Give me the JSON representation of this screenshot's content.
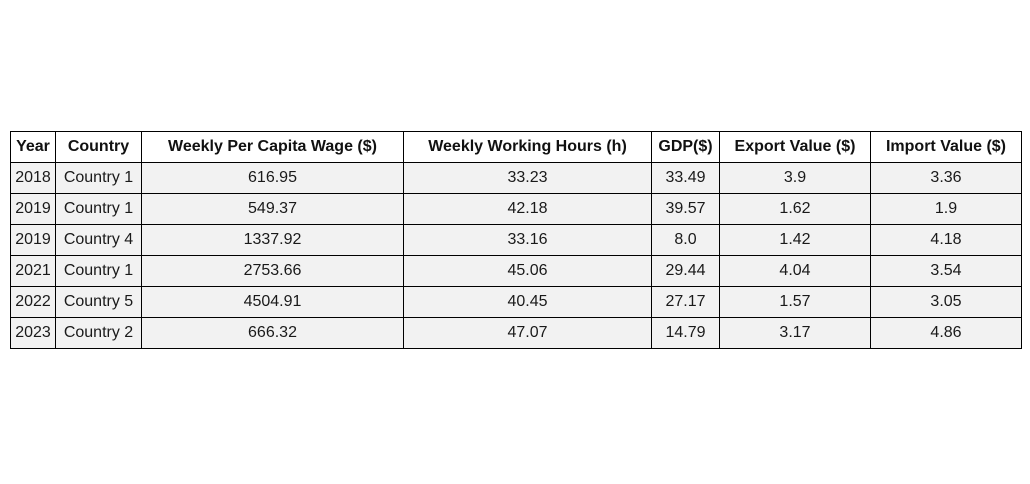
{
  "chart_data": {
    "type": "table",
    "columns": [
      "Year",
      "Country",
      "Weekly Per Capita Wage ($)",
      "Weekly Working Hours (h)",
      "GDP($)",
      "Export Value ($)",
      "Import Value ($)"
    ],
    "rows": [
      [
        "2018",
        "Country 1",
        "616.95",
        "33.23",
        "33.49",
        "3.9",
        "3.36"
      ],
      [
        "2019",
        "Country 1",
        "549.37",
        "42.18",
        "39.57",
        "1.62",
        "1.9"
      ],
      [
        "2019",
        "Country 4",
        "1337.92",
        "33.16",
        "8.0",
        "1.42",
        "4.18"
      ],
      [
        "2021",
        "Country 1",
        "2753.66",
        "45.06",
        "29.44",
        "4.04",
        "3.54"
      ],
      [
        "2022",
        "Country 5",
        "4504.91",
        "40.45",
        "27.17",
        "1.57",
        "3.05"
      ],
      [
        "2023",
        "Country 2",
        "666.32",
        "47.07",
        "14.79",
        "3.17",
        "4.86"
      ]
    ],
    "colors": {
      "header_background": "#ffffff",
      "cell_background": "#f2f2f2",
      "border": "#000000"
    }
  }
}
